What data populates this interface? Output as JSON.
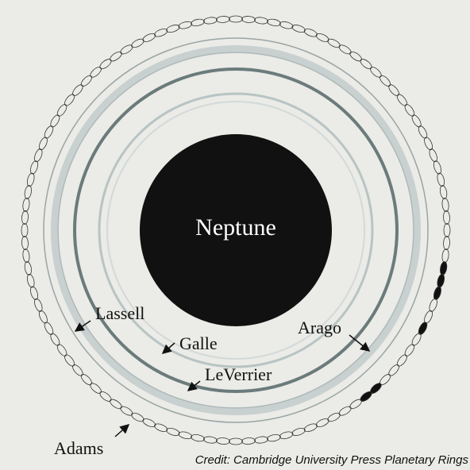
{
  "planet": {
    "label": "Neptune"
  },
  "rings": [
    {
      "label": "Lassell"
    },
    {
      "label": "Galle"
    },
    {
      "label": "LeVerrier"
    },
    {
      "label": "Arago"
    },
    {
      "label": "Adams"
    }
  ],
  "credit": "Credit: Cambridge University Press Planetary Rings"
}
